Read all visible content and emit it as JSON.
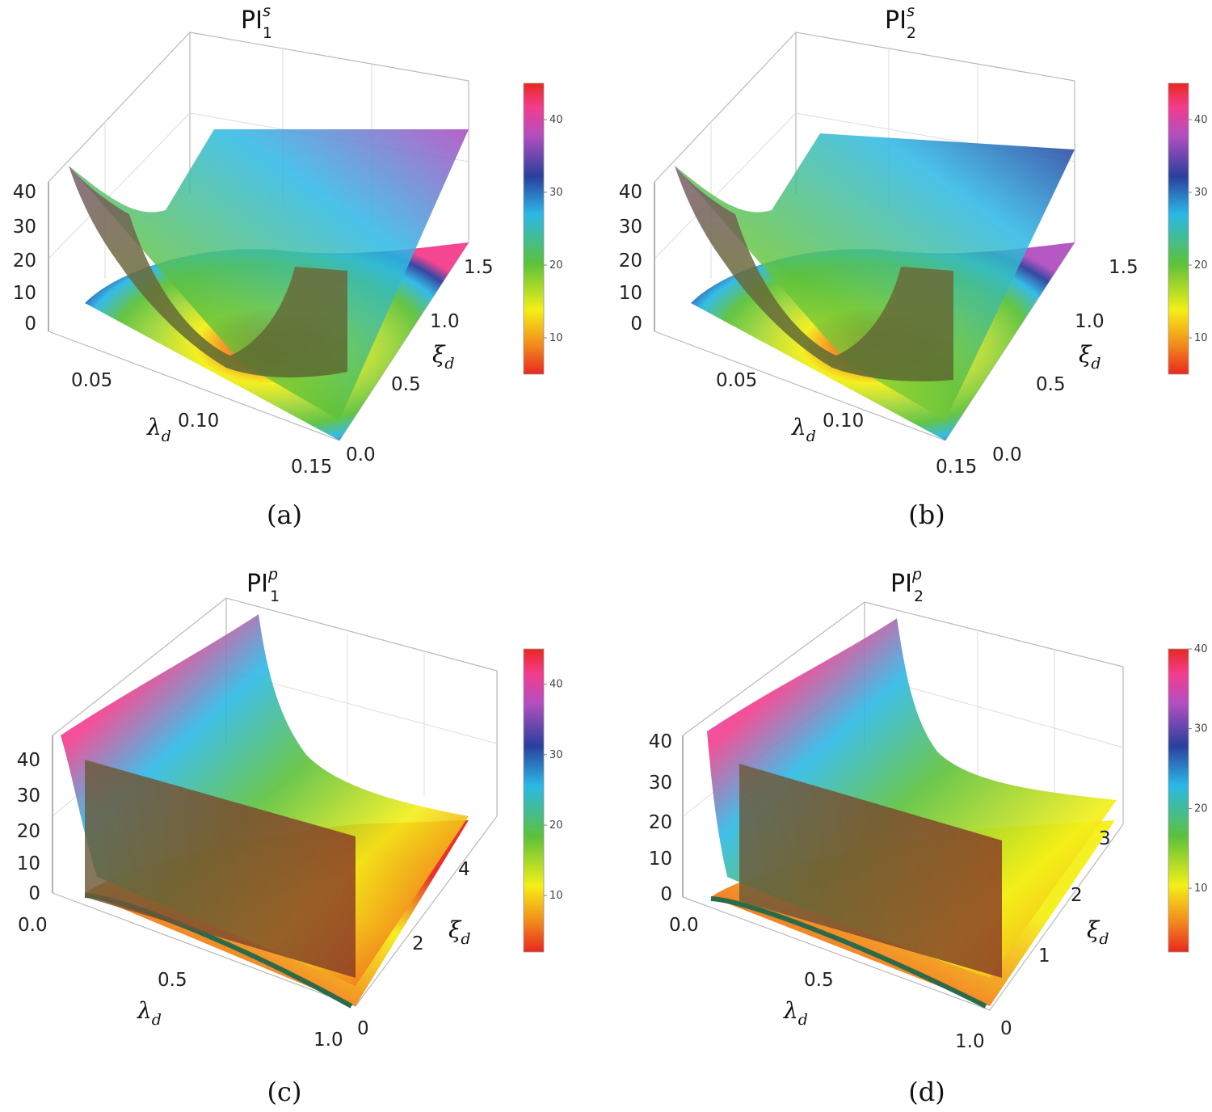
{
  "colors": {
    "red": "#e8281f",
    "orange": "#f28a1c",
    "yellow": "#f4ef17",
    "green": "#5cc13b",
    "cyan": "#2bb8e6",
    "blue": "#2b3f9d",
    "magenta": "#b24fc0",
    "pink": "#f43c8c",
    "box": "#b9b9b9",
    "grid": "#d7d7d7",
    "wall": "#6b5a3a"
  },
  "chart_data": [
    {
      "type": "surface3d",
      "panel": "a",
      "title_base": "PI",
      "title_sub": "1",
      "title_sup": "s",
      "caption": "(a)",
      "xlabel_base": "λ",
      "xlabel_sub": "d",
      "ylabel_base": "ξ",
      "ylabel_sub": "d",
      "xticks": [
        "0.05",
        "0.10",
        "0.15"
      ],
      "yticks": [
        "0.0",
        "0.5",
        "1.0",
        "1.5"
      ],
      "zticks": [
        "0",
        "10",
        "20",
        "30",
        "40"
      ],
      "colorbar_ticks": [
        "10",
        "20",
        "30",
        "40"
      ],
      "colorbar_range": [
        5,
        45
      ]
    },
    {
      "type": "surface3d",
      "panel": "b",
      "title_base": "PI",
      "title_sub": "2",
      "title_sup": "s",
      "caption": "(b)",
      "xlabel_base": "λ",
      "xlabel_sub": "d",
      "ylabel_base": "ξ",
      "ylabel_sub": "d",
      "xticks": [
        "0.05",
        "0.10",
        "0.15"
      ],
      "yticks": [
        "0.0",
        "0.5",
        "1.0",
        "1.5"
      ],
      "zticks": [
        "0",
        "10",
        "20",
        "30",
        "40"
      ],
      "colorbar_ticks": [
        "10",
        "20",
        "30",
        "40"
      ],
      "colorbar_range": [
        5,
        45
      ]
    },
    {
      "type": "surface3d",
      "panel": "c",
      "title_base": "PI",
      "title_sub": "1",
      "title_sup": "p",
      "caption": "(c)",
      "xlabel_base": "λ",
      "xlabel_sub": "d",
      "ylabel_base": "ξ",
      "ylabel_sub": "d",
      "xticks": [
        "0.0",
        "0.5",
        "1.0"
      ],
      "yticks": [
        "0",
        "2",
        "4"
      ],
      "zticks": [
        "0",
        "10",
        "20",
        "30",
        "40"
      ],
      "colorbar_ticks": [
        "10",
        "20",
        "30",
        "40"
      ],
      "colorbar_range": [
        2,
        45
      ]
    },
    {
      "type": "surface3d",
      "panel": "d",
      "title_base": "PI",
      "title_sub": "2",
      "title_sup": "p",
      "caption": "(d)",
      "xlabel_base": "λ",
      "xlabel_sub": "d",
      "ylabel_base": "ξ",
      "ylabel_sub": "d",
      "xticks": [
        "0.0",
        "0.5",
        "1.0"
      ],
      "yticks": [
        "0",
        "1",
        "2",
        "3"
      ],
      "zticks": [
        "0",
        "10",
        "20",
        "30",
        "40"
      ],
      "colorbar_ticks": [
        "10",
        "20",
        "30",
        "40"
      ],
      "colorbar_range": [
        2,
        40
      ]
    }
  ]
}
